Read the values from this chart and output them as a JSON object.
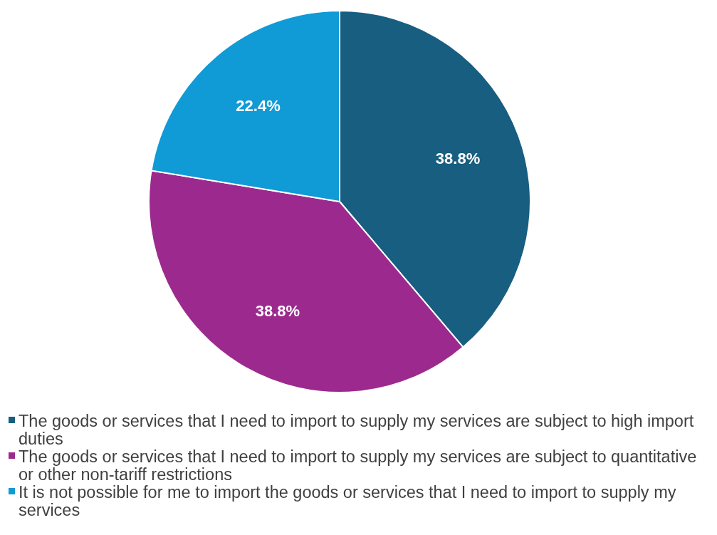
{
  "chart_data": {
    "type": "pie",
    "categories": [
      "The goods or services that I need to import to supply my services are subject to high import duties",
      "The goods or services that I need to import to supply my services are subject to quantitative or other non-tariff restrictions",
      "It is not possible for me to import the goods or services that I need to import to supply my services"
    ],
    "values": [
      38.8,
      38.8,
      22.4
    ],
    "colors": [
      "#175e80",
      "#9c2a8e",
      "#109ad6"
    ],
    "value_labels": [
      "38.8%",
      "38.8%",
      "22.4%"
    ],
    "legend": "bottom"
  }
}
